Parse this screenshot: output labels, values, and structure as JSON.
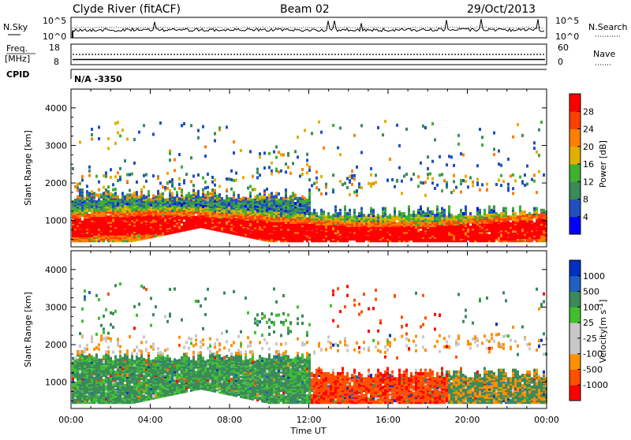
{
  "header": {
    "station": "Clyde River (fitACF)",
    "beam": "Beam 02",
    "date": "29/Oct/2013"
  },
  "noise_panel": {
    "left_label": "N.Sky",
    "right_label": "N.Search",
    "left_ticks": [
      "10^5",
      "10^0"
    ],
    "right_ticks": [
      "10^5",
      "10^0"
    ]
  },
  "freq_panel": {
    "left_label_line1": "Freq.",
    "left_label_line2": "[MHz]",
    "right_label": "Nave",
    "left_ticks": [
      "18",
      "8"
    ],
    "right_ticks": [
      "60",
      "0"
    ],
    "nave_level_fraction": 0.25,
    "freq_level_fraction": 0.55
  },
  "cpid": {
    "label": "CPID",
    "value": "N/A -3350"
  },
  "colors": {
    "power": [
      "#0000ff",
      "#2050c0",
      "#3a8a5a",
      "#40b030",
      "#e0b000",
      "#ff8000",
      "#ff4000",
      "#ff0000"
    ],
    "velocity": [
      "#ff0000",
      "#ff5000",
      "#ff9000",
      "#c8c8c8",
      "#c8c8c8",
      "#40c030",
      "#3a8a5a",
      "#2060c0",
      "#0030c0"
    ]
  },
  "chart_data": [
    {
      "type": "heatmap",
      "name": "power",
      "ylabel": "Slant Range [km]",
      "ylim": [
        300,
        4500
      ],
      "yticks": [
        "1000",
        "2000",
        "3000",
        "4000"
      ],
      "xlim_hours": [
        0,
        24
      ],
      "colorbar": {
        "label": "Power [dB]",
        "ticks": [
          "4",
          "8",
          "12",
          "16",
          "20",
          "24",
          "28"
        ],
        "range": [
          0,
          32
        ]
      }
    },
    {
      "type": "heatmap",
      "name": "velocity",
      "ylabel": "Slant Range [km]",
      "xlabel": "Time UT",
      "ylim": [
        300,
        4500
      ],
      "yticks": [
        "1000",
        "2000",
        "3000",
        "4000"
      ],
      "xticks": [
        "00:00",
        "04:00",
        "08:00",
        "12:00",
        "16:00",
        "20:00",
        "00:00"
      ],
      "xlim_hours": [
        0,
        24
      ],
      "colorbar": {
        "label": "Velocity",
        "unit": "[m s",
        "unit_exp": "-1",
        "unit_close": "]",
        "ticks": [
          "1000",
          "500",
          "100",
          "25",
          "-25",
          "-100",
          "-500",
          "-1000"
        ]
      }
    }
  ]
}
